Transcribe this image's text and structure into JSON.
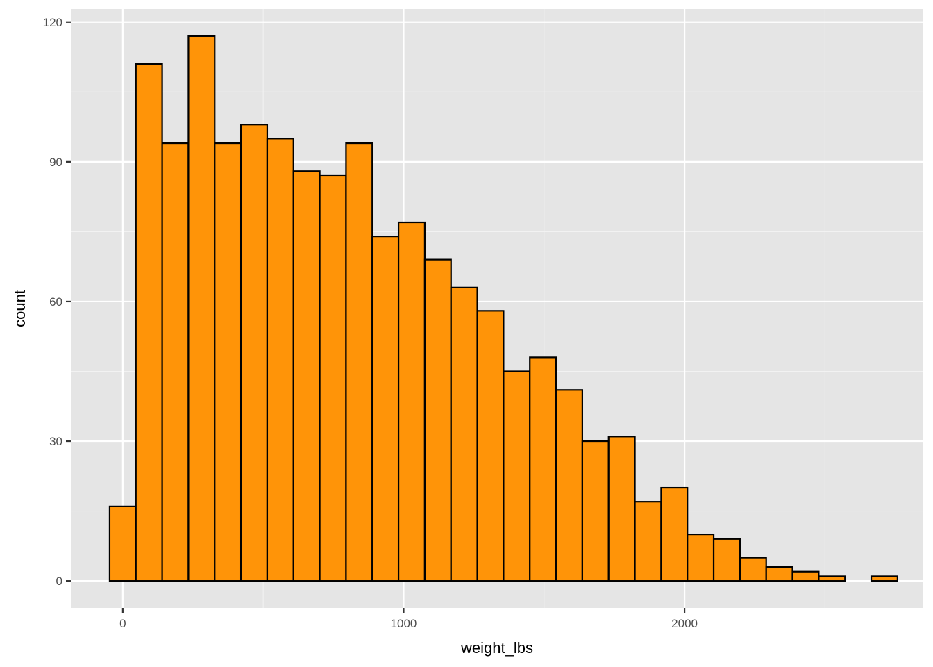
{
  "chart_data": {
    "type": "bar",
    "subtype": "histogram",
    "title": "",
    "xlabel": "weight_lbs",
    "ylabel": "count",
    "bin_width": 93.5,
    "bins": [
      {
        "center": 0,
        "count": 16
      },
      {
        "center": 93.5,
        "count": 111
      },
      {
        "center": 187,
        "count": 94
      },
      {
        "center": 280.5,
        "count": 117
      },
      {
        "center": 374,
        "count": 94
      },
      {
        "center": 467.5,
        "count": 98
      },
      {
        "center": 561,
        "count": 95
      },
      {
        "center": 654.5,
        "count": 88
      },
      {
        "center": 748,
        "count": 87
      },
      {
        "center": 841.5,
        "count": 94
      },
      {
        "center": 935,
        "count": 74
      },
      {
        "center": 1028.5,
        "count": 77
      },
      {
        "center": 1122,
        "count": 69
      },
      {
        "center": 1215.5,
        "count": 63
      },
      {
        "center": 1309,
        "count": 58
      },
      {
        "center": 1402.5,
        "count": 45
      },
      {
        "center": 1496,
        "count": 48
      },
      {
        "center": 1589.5,
        "count": 41
      },
      {
        "center": 1683,
        "count": 30
      },
      {
        "center": 1776.5,
        "count": 31
      },
      {
        "center": 1870,
        "count": 17
      },
      {
        "center": 1963.5,
        "count": 20
      },
      {
        "center": 2057,
        "count": 10
      },
      {
        "center": 2150.5,
        "count": 9
      },
      {
        "center": 2244,
        "count": 5
      },
      {
        "center": 2337.5,
        "count": 3
      },
      {
        "center": 2431,
        "count": 2
      },
      {
        "center": 2524.5,
        "count": 1
      },
      {
        "center": 2618,
        "count": 0
      },
      {
        "center": 2711.5,
        "count": 1
      }
    ],
    "xlim": [
      -185,
      2850
    ],
    "ylim": [
      -5.8,
      122.8
    ],
    "x_ticks": [
      0,
      1000,
      2000
    ],
    "x_tick_labels": [
      "0",
      "1000",
      "2000"
    ],
    "y_ticks": [
      0,
      30,
      60,
      90,
      120
    ],
    "y_tick_labels": [
      "0",
      "30",
      "60",
      "90",
      "120"
    ],
    "grid": true,
    "legend": "none",
    "colors": {
      "bar_fill": "#ff9408",
      "bar_outline": "#000000",
      "panel_background": "#e5e5e5",
      "grid_major": "#ffffff",
      "grid_minor": "#f2f2f2",
      "tick_label": "#4d4d4d"
    }
  }
}
